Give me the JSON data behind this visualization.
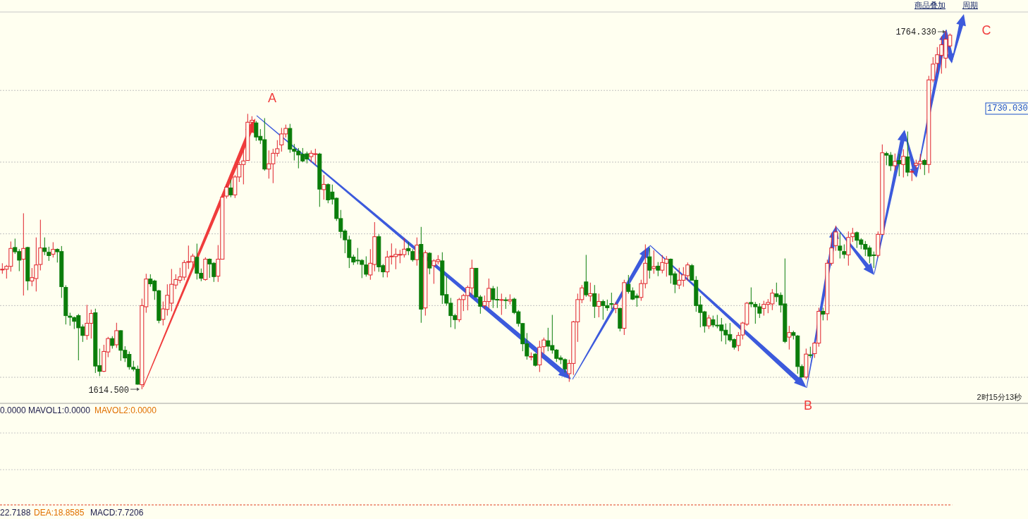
{
  "chart_data": {
    "type": "candlestick",
    "categories": [
      null,
      null,
      null,
      null,
      null,
      null,
      null,
      null,
      null,
      null,
      null,
      null,
      null,
      null,
      null,
      null,
      null,
      null,
      null,
      null,
      null,
      null,
      null,
      null,
      null,
      null,
      null,
      null,
      null,
      null,
      null,
      null,
      null,
      null,
      null,
      null,
      null,
      null,
      null,
      null,
      null,
      null,
      null,
      null,
      null,
      null,
      null,
      null,
      null,
      null,
      null,
      null,
      null,
      null,
      null,
      null,
      null,
      null,
      null,
      null,
      null,
      null,
      null,
      null,
      null,
      null,
      null,
      null,
      null,
      null,
      null,
      null,
      null,
      null,
      null,
      null,
      null,
      null,
      null,
      null,
      null,
      null,
      null,
      null,
      null,
      null,
      null,
      null,
      null,
      null,
      null,
      null,
      null,
      null,
      null,
      null,
      null,
      null,
      null,
      null,
      null,
      null,
      null,
      null,
      null,
      null,
      null,
      null,
      null,
      null,
      null,
      null,
      null,
      null,
      null,
      null,
      null,
      null,
      null,
      null,
      null,
      null,
      null,
      null,
      null,
      null,
      null,
      null,
      null,
      null,
      null,
      null,
      null,
      null,
      null,
      null,
      null,
      null,
      null,
      null,
      null,
      null,
      null,
      null,
      null,
      null,
      null,
      null,
      null,
      null,
      null,
      null,
      null,
      null,
      null,
      null,
      null,
      null,
      null,
      null,
      null,
      null,
      null,
      null,
      null,
      null,
      null,
      null,
      null,
      null,
      null,
      null,
      null,
      null,
      null,
      null,
      null,
      null,
      null,
      null,
      null,
      null,
      null,
      null,
      null,
      null,
      null,
      null,
      null,
      null,
      null,
      null,
      null,
      null,
      null,
      null,
      null,
      null,
      null,
      null,
      null,
      null,
      null,
      null,
      null,
      null,
      null,
      null,
      null,
      null,
      null,
      null,
      null,
      null,
      null,
      null,
      null,
      null,
      null,
      null,
      null,
      null,
      null,
      null,
      null
    ],
    "ohlc": [
      [
        1664.7,
        1667.2,
        1662.8,
        1664.7
      ],
      [
        1664.7,
        1666.5,
        1660.8,
        1665.9
      ],
      [
        1665.9,
        1676.3,
        1663.7,
        1673.4
      ],
      [
        1673.8,
        1677.5,
        1671.1,
        1672.0
      ],
      [
        1672.1,
        1673.1,
        1663.9,
        1668.5
      ],
      [
        1668.9,
        1688.1,
        1653.7,
        1673.4
      ],
      [
        1673.8,
        1674.1,
        1655.9,
        1659.8
      ],
      [
        1659.8,
        1665.2,
        1657.6,
        1661.2
      ],
      [
        1660.8,
        1678.0,
        1655.4,
        1666.5
      ],
      [
        1666.7,
        1685.4,
        1664.2,
        1673.6
      ],
      [
        1673.6,
        1678.0,
        1670.6,
        1672.1
      ],
      [
        1671.8,
        1674.1,
        1668.2,
        1670.4
      ],
      [
        1671.0,
        1676.0,
        1669.6,
        1673.0
      ],
      [
        1673.0,
        1673.4,
        1667.5,
        1672.0
      ],
      [
        1672.1,
        1674.4,
        1652.7,
        1657.4
      ],
      [
        1657.1,
        1658.0,
        1641.6,
        1645.3
      ],
      [
        1645.1,
        1646.5,
        1641.1,
        1644.6
      ],
      [
        1644.5,
        1644.9,
        1639.7,
        1642.9
      ],
      [
        1645.3,
        1646.0,
        1626.6,
        1640.2
      ],
      [
        1640.6,
        1641.6,
        1634.3,
        1637.0
      ],
      [
        1637.0,
        1649.8,
        1635.2,
        1642.1
      ],
      [
        1642.1,
        1647.8,
        1635.7,
        1646.2
      ],
      [
        1646.5,
        1648.2,
        1621.3,
        1624.2
      ],
      [
        1624.4,
        1631.5,
        1620.0,
        1622.0
      ],
      [
        1622.0,
        1633.1,
        1621.7,
        1630.3
      ],
      [
        1630.1,
        1636.4,
        1627.9,
        1635.7
      ],
      [
        1635.7,
        1636.7,
        1631.5,
        1632.8
      ],
      [
        1633.1,
        1642.3,
        1631.8,
        1639.0
      ],
      [
        1639.0,
        1639.2,
        1626.4,
        1630.8
      ],
      [
        1630.8,
        1632.5,
        1625.9,
        1627.6
      ],
      [
        1629.1,
        1630.3,
        1622.7,
        1623.9
      ],
      [
        1623.7,
        1626.4,
        1622.0,
        1622.9
      ],
      [
        1622.9,
        1624.4,
        1616.4,
        1616.6
      ],
      [
        1616.4,
        1652.4,
        1614.5,
        1649.5
      ],
      [
        1649.0,
        1662.8,
        1646.5,
        1660.6
      ],
      [
        1660.6,
        1662.6,
        1657.4,
        1658.6
      ],
      [
        1659.8,
        1660.3,
        1651.9,
        1655.7
      ],
      [
        1655.7,
        1656.1,
        1642.1,
        1643.3
      ],
      [
        1643.7,
        1651.2,
        1641.2,
        1648.1
      ],
      [
        1647.9,
        1658.4,
        1645.3,
        1653.8
      ],
      [
        1650.5,
        1664.8,
        1647.1,
        1658.4
      ],
      [
        1658.1,
        1662.6,
        1656.4,
        1660.4
      ],
      [
        1660.1,
        1665.3,
        1658.9,
        1661.5
      ],
      [
        1661.4,
        1668.5,
        1660.1,
        1667.5
      ],
      [
        1667.9,
        1674.6,
        1664.8,
        1667.9
      ],
      [
        1667.8,
        1671.2,
        1665.8,
        1670.2
      ],
      [
        1669.7,
        1675.4,
        1660.4,
        1663.0
      ],
      [
        1663.0,
        1665.0,
        1659.7,
        1660.9
      ],
      [
        1660.4,
        1669.7,
        1659.9,
        1668.9
      ],
      [
        1668.9,
        1669.2,
        1661.1,
        1666.9
      ],
      [
        1667.2,
        1667.7,
        1659.4,
        1661.6
      ],
      [
        1661.8,
        1674.8,
        1659.4,
        1668.9
      ],
      [
        1668.9,
        1694.8,
        1668.9,
        1694.8
      ],
      [
        1695.3,
        1700.2,
        1694.3,
        1699.0
      ],
      [
        1698.7,
        1702.1,
        1694.8,
        1695.8
      ],
      [
        1695.8,
        1704.1,
        1694.5,
        1703.3
      ],
      [
        1703.3,
        1709.5,
        1701.2,
        1708.5
      ],
      [
        1708.5,
        1714.4,
        1700.2,
        1710.0
      ],
      [
        1710.2,
        1729.7,
        1710.2,
        1726.2
      ],
      [
        1726.2,
        1728.7,
        1721.8,
        1727.0
      ],
      [
        1725.9,
        1726.7,
        1718.4,
        1720.0
      ],
      [
        1720.3,
        1723.3,
        1717.1,
        1718.7
      ],
      [
        1718.9,
        1727.9,
        1705.9,
        1706.6
      ],
      [
        1706.6,
        1714.4,
        1702.6,
        1708.8
      ],
      [
        1708.8,
        1715.1,
        1700.7,
        1713.2
      ],
      [
        1713.2,
        1718.7,
        1711.8,
        1715.1
      ],
      [
        1716.7,
        1723.8,
        1713.9,
        1721.3
      ],
      [
        1721.3,
        1725.2,
        1719.8,
        1723.6
      ],
      [
        1723.6,
        1725.5,
        1713.4,
        1714.9
      ],
      [
        1714.9,
        1717.1,
        1710.2,
        1714.0
      ],
      [
        1714.1,
        1715.4,
        1706.9,
        1712.5
      ],
      [
        1712.8,
        1715.4,
        1709.5,
        1710.0
      ],
      [
        1713.0,
        1713.9,
        1709.0,
        1710.8
      ],
      [
        1711.8,
        1714.4,
        1709.5,
        1713.2
      ],
      [
        1712.8,
        1715.1,
        1708.5,
        1713.0
      ],
      [
        1712.9,
        1713.4,
        1690.8,
        1698.2
      ],
      [
        1698.0,
        1704.1,
        1693.8,
        1700.2
      ],
      [
        1700.1,
        1700.6,
        1692.3,
        1693.7
      ],
      [
        1697.0,
        1700.1,
        1691.8,
        1694.0
      ],
      [
        1694.4,
        1694.7,
        1684.9,
        1685.9
      ],
      [
        1685.9,
        1689.5,
        1677.7,
        1680.5
      ],
      [
        1680.7,
        1681.4,
        1671.4,
        1677.0
      ],
      [
        1677.0,
        1678.7,
        1665.2,
        1669.6
      ],
      [
        1669.8,
        1670.8,
        1666.5,
        1667.7
      ],
      [
        1668.5,
        1673.6,
        1666.7,
        1668.3
      ],
      [
        1668.4,
        1668.9,
        1661.0,
        1666.7
      ],
      [
        1666.5,
        1670.1,
        1661.6,
        1662.6
      ],
      [
        1662.3,
        1673.1,
        1660.3,
        1667.2
      ],
      [
        1666.7,
        1684.4,
        1663.8,
        1678.3
      ],
      [
        1678.3,
        1679.3,
        1663.6,
        1665.7
      ],
      [
        1666.2,
        1666.9,
        1661.3,
        1663.6
      ],
      [
        1663.6,
        1672.4,
        1661.3,
        1669.8
      ],
      [
        1670.0,
        1675.5,
        1666.7,
        1670.2
      ],
      [
        1670.0,
        1673.4,
        1664.7,
        1670.9
      ],
      [
        1670.8,
        1672.8,
        1667.2,
        1670.9
      ],
      [
        1670.8,
        1677.7,
        1669.6,
        1673.1
      ],
      [
        1673.4,
        1676.0,
        1670.6,
        1672.4
      ],
      [
        1672.1,
        1673.1,
        1667.9,
        1668.7
      ],
      [
        1668.7,
        1678.0,
        1666.2,
        1674.8
      ],
      [
        1675.1,
        1682.4,
        1642.3,
        1648.0
      ],
      [
        1648.5,
        1672.6,
        1645.3,
        1671.6
      ],
      [
        1671.4,
        1671.8,
        1662.6,
        1665.2
      ],
      [
        1666.2,
        1668.9,
        1658.6,
        1668.2
      ],
      [
        1667.9,
        1670.6,
        1666.7,
        1668.7
      ],
      [
        1668.2,
        1671.8,
        1650.2,
        1653.9
      ],
      [
        1654.1,
        1661.8,
        1649.5,
        1650.5
      ],
      [
        1650.5,
        1652.7,
        1640.4,
        1645.3
      ],
      [
        1645.3,
        1646.1,
        1639.7,
        1643.6
      ],
      [
        1643.6,
        1652.7,
        1642.6,
        1652.0
      ],
      [
        1652.0,
        1654.4,
        1647.2,
        1653.7
      ],
      [
        1653.7,
        1657.9,
        1647.5,
        1657.1
      ],
      [
        1656.9,
        1668.7,
        1653.9,
        1665.1
      ],
      [
        1665.1,
        1665.2,
        1652.9,
        1653.1
      ],
      [
        1653.1,
        1653.9,
        1646.1,
        1649.2
      ],
      [
        1649.5,
        1653.7,
        1648.0,
        1651.2
      ],
      [
        1651.2,
        1660.8,
        1648.5,
        1656.7
      ],
      [
        1656.6,
        1657.7,
        1648.5,
        1652.0
      ],
      [
        1652.1,
        1657.4,
        1648.5,
        1652.0
      ],
      [
        1651.9,
        1654.5,
        1645.6,
        1652.0
      ],
      [
        1651.9,
        1653.0,
        1648.1,
        1651.8
      ],
      [
        1651.4,
        1654.2,
        1650.0,
        1652.0
      ],
      [
        1652.2,
        1652.8,
        1645.9,
        1646.6
      ],
      [
        1646.9,
        1647.6,
        1640.7,
        1642.0
      ],
      [
        1642.0,
        1642.2,
        1630.4,
        1633.5
      ],
      [
        1633.5,
        1638.0,
        1626.9,
        1628.4
      ],
      [
        1628.2,
        1629.9,
        1626.6,
        1628.2
      ],
      [
        1629.2,
        1629.6,
        1624.0,
        1624.5
      ],
      [
        1624.7,
        1634.8,
        1621.7,
        1632.1
      ],
      [
        1632.3,
        1636.1,
        1629.4,
        1635.1
      ],
      [
        1634.8,
        1640.2,
        1630.4,
        1632.5
      ],
      [
        1632.8,
        1645.6,
        1629.4,
        1630.9
      ],
      [
        1630.9,
        1631.3,
        1625.9,
        1627.4
      ],
      [
        1627.6,
        1628.6,
        1625.0,
        1626.9
      ],
      [
        1626.9,
        1627.4,
        1621.5,
        1623.0
      ],
      [
        1621.0,
        1626.9,
        1617.6,
        1625.3
      ],
      [
        1625.3,
        1643.1,
        1620.5,
        1642.7
      ],
      [
        1642.7,
        1654.5,
        1634.3,
        1652.0
      ],
      [
        1652.0,
        1658.1,
        1650.5,
        1656.9
      ],
      [
        1659.4,
        1670.7,
        1653.2,
        1654.0
      ],
      [
        1653.5,
        1659.1,
        1651.2,
        1654.5
      ],
      [
        1654.5,
        1658.1,
        1644.3,
        1649.2
      ],
      [
        1649.2,
        1654.5,
        1644.6,
        1651.2
      ],
      [
        1651.2,
        1652.0,
        1643.6,
        1649.5
      ],
      [
        1649.5,
        1652.0,
        1647.3,
        1648.6
      ],
      [
        1650.3,
        1654.9,
        1648.1,
        1650.2
      ],
      [
        1648.3,
        1651.0,
        1646.3,
        1650.0
      ],
      [
        1648.3,
        1648.6,
        1638.7,
        1640.0
      ],
      [
        1640.0,
        1660.3,
        1637.2,
        1659.1
      ],
      [
        1658.4,
        1662.3,
        1654.5,
        1655.4
      ],
      [
        1655.7,
        1657.1,
        1651.8,
        1652.2
      ],
      [
        1653.5,
        1654.5,
        1649.0,
        1652.8
      ],
      [
        1652.9,
        1660.3,
        1651.5,
        1658.7
      ],
      [
        1658.7,
        1675.1,
        1656.7,
        1667.2
      ],
      [
        1669.9,
        1673.6,
        1660.8,
        1664.3
      ],
      [
        1665.0,
        1672.6,
        1662.8,
        1665.8
      ],
      [
        1666.0,
        1667.7,
        1661.8,
        1664.3
      ],
      [
        1664.3,
        1670.6,
        1663.0,
        1667.5
      ],
      [
        1667.2,
        1670.2,
        1661.6,
        1668.9
      ],
      [
        1668.9,
        1669.2,
        1658.7,
        1662.3
      ],
      [
        1662.8,
        1663.8,
        1654.7,
        1658.4
      ],
      [
        1658.1,
        1665.3,
        1656.4,
        1660.1
      ],
      [
        1660.1,
        1665.6,
        1657.4,
        1662.3
      ],
      [
        1662.0,
        1667.5,
        1659.9,
        1666.5
      ],
      [
        1666.2,
        1666.9,
        1659.9,
        1660.1
      ],
      [
        1660.1,
        1661.8,
        1646.9,
        1649.5
      ],
      [
        1649.8,
        1653.5,
        1640.4,
        1646.6
      ],
      [
        1646.9,
        1647.3,
        1638.2,
        1641.0
      ],
      [
        1641.0,
        1645.6,
        1639.7,
        1644.3
      ],
      [
        1643.6,
        1645.3,
        1640.4,
        1641.4
      ],
      [
        1641.3,
        1645.6,
        1640.0,
        1641.2
      ],
      [
        1641.4,
        1644.3,
        1634.5,
        1639.0
      ],
      [
        1639.2,
        1642.0,
        1633.3,
        1637.2
      ],
      [
        1637.4,
        1642.2,
        1634.3,
        1635.1
      ],
      [
        1635.3,
        1635.8,
        1631.1,
        1632.1
      ],
      [
        1632.8,
        1638.4,
        1630.4,
        1637.0
      ],
      [
        1637.2,
        1642.7,
        1635.3,
        1642.2
      ],
      [
        1641.7,
        1651.0,
        1641.0,
        1650.5
      ],
      [
        1650.8,
        1657.1,
        1648.8,
        1650.2
      ],
      [
        1650.0,
        1651.0,
        1641.9,
        1649.0
      ],
      [
        1649.0,
        1650.5,
        1644.3,
        1646.3
      ],
      [
        1648.3,
        1651.5,
        1645.3,
        1650.0
      ],
      [
        1650.0,
        1652.2,
        1646.3,
        1650.8
      ],
      [
        1650.2,
        1656.4,
        1647.6,
        1654.7
      ],
      [
        1654.4,
        1659.1,
        1651.0,
        1653.2
      ],
      [
        1653.8,
        1655.0,
        1646.6,
        1649.8
      ],
      [
        1650.2,
        1669.2,
        1633.8,
        1634.5
      ],
      [
        1636.3,
        1641.0,
        1631.1,
        1638.2
      ],
      [
        1638.2,
        1639.0,
        1635.3,
        1637.0
      ],
      [
        1636.8,
        1637.2,
        1621.0,
        1624.0
      ],
      [
        1624.0,
        1624.9,
        1619.4,
        1619.6
      ],
      [
        1619.6,
        1631.5,
        1618.6,
        1629.2
      ],
      [
        1628.9,
        1632.3,
        1627.6,
        1628.8
      ],
      [
        1629.4,
        1634.3,
        1627.6,
        1633.8
      ],
      [
        1633.8,
        1648.6,
        1632.3,
        1647.1
      ],
      [
        1647.1,
        1648.6,
        1643.3,
        1645.9
      ],
      [
        1646.1,
        1668.7,
        1643.3,
        1667.2
      ],
      [
        1667.2,
        1680.0,
        1666.2,
        1673.6
      ],
      [
        1674.6,
        1682.9,
        1672.4,
        1680.3
      ],
      [
        1674.4,
        1680.0,
        1669.2,
        1672.6
      ],
      [
        1672.1,
        1675.1,
        1669.2,
        1670.9
      ],
      [
        1670.7,
        1680.5,
        1666.2,
        1678.0
      ],
      [
        1678.3,
        1682.0,
        1676.1,
        1679.7
      ],
      [
        1680.0,
        1680.5,
        1673.6,
        1676.8
      ],
      [
        1677.0,
        1677.7,
        1673.1,
        1675.1
      ],
      [
        1675.1,
        1676.5,
        1670.2,
        1673.1
      ],
      [
        1673.6,
        1674.6,
        1667.2,
        1670.2
      ],
      [
        1670.7,
        1672.1,
        1665.2,
        1670.6
      ],
      [
        1670.5,
        1680.5,
        1669.7,
        1679.3
      ],
      [
        1679.3,
        1716.9,
        1679.3,
        1713.4
      ],
      [
        1713.1,
        1713.9,
        1708.2,
        1712.4
      ],
      [
        1712.4,
        1713.7,
        1705.8,
        1708.0
      ],
      [
        1708.0,
        1713.1,
        1706.0,
        1709.8
      ],
      [
        1710.2,
        1712.9,
        1703.6,
        1708.8
      ],
      [
        1708.5,
        1714.9,
        1703.1,
        1711.9
      ],
      [
        1711.7,
        1722.3,
        1703.6,
        1705.3
      ],
      [
        1705.5,
        1706.2,
        1701.6,
        1705.6
      ],
      [
        1708.2,
        1710.5,
        1706.5,
        1709.0
      ],
      [
        1708.8,
        1712.9,
        1706.5,
        1709.8
      ],
      [
        1710.2,
        1710.8,
        1704.1,
        1708.5
      ],
      [
        1708.5,
        1745.6,
        1704.9,
        1743.9
      ],
      [
        1743.9,
        1753.4,
        1742.9,
        1750.5
      ],
      [
        1750.8,
        1757.6,
        1746.8,
        1754.4
      ],
      [
        1754.2,
        1762.1,
        1746.5,
        1758.6
      ],
      [
        1753.0,
        1764.33,
        1748.8,
        1760.9
      ],
      [
        1758.1,
        1763.3,
        1757.4,
        1762.6
      ]
    ],
    "ylim": [
      1608.6,
      1772.3
    ],
    "yticks": [
      {
        "value": 1619.5,
        "label": null
      },
      {
        "value": 1649.5,
        "label": null
      },
      {
        "value": 1679.5,
        "label": null
      },
      {
        "value": 1709.5,
        "label": null
      },
      {
        "value": 1739.5,
        "label": null
      }
    ],
    "grid": true,
    "annotations": [
      "A",
      "B",
      "C",
      "1764.330",
      "1614.500",
      "1730.030",
      "商品叠加",
      "周期",
      "2时15分13秒",
      "0.0000",
      "MAVOL1:0.0000",
      "MAVOL2:0.0000",
      "22.7188",
      "DEA:18.8585",
      "MACD:7.7206"
    ]
  }
}
